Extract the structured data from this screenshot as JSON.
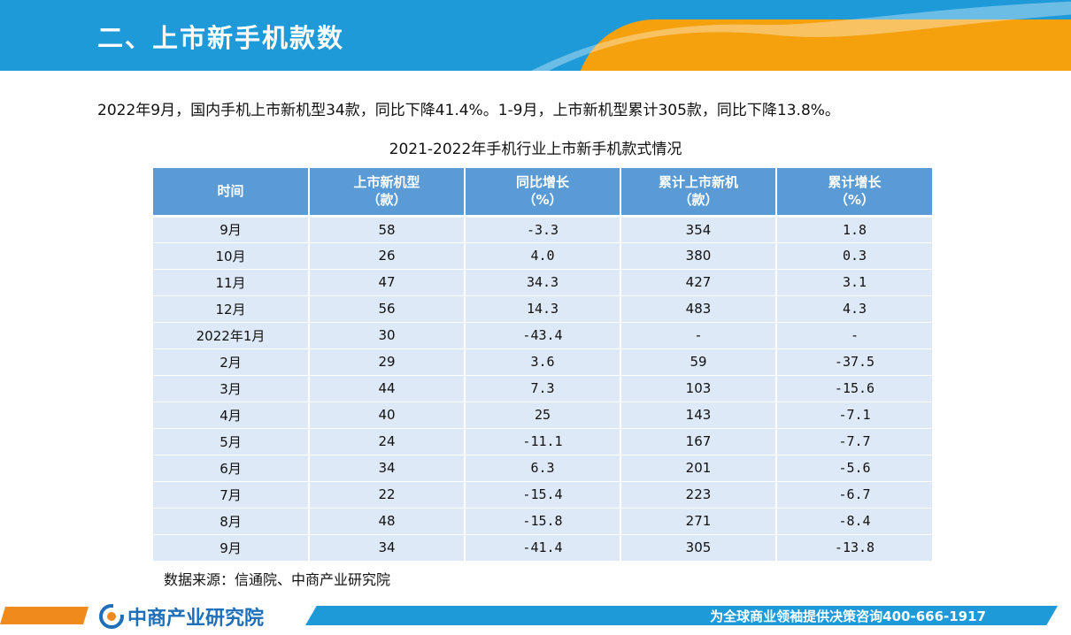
{
  "header": {
    "title": "二、上市新手机款数"
  },
  "summary": "2022年9月，国内手机上市新机型34款，同比下降41.4%。1-9月，上市新机型累计305款，同比下降13.8%。",
  "table_title": "2021-2022年手机行业上市新手机款式情况",
  "table": {
    "headers": [
      {
        "line1": "时间",
        "line2": ""
      },
      {
        "line1": "上市新机型",
        "line2": "（款）"
      },
      {
        "line1": "同比增长",
        "line2": "（%）"
      },
      {
        "line1": "累计上市新机",
        "line2": "（款）"
      },
      {
        "line1": "累计增长",
        "line2": "（%）"
      }
    ],
    "rows": [
      [
        "9月",
        "58",
        "-3.3",
        "354",
        "1.8"
      ],
      [
        "10月",
        "26",
        "4.0",
        "380",
        "0.3"
      ],
      [
        "11月",
        "47",
        "34.3",
        "427",
        "3.1"
      ],
      [
        "12月",
        "56",
        "14.3",
        "483",
        "4.3"
      ],
      [
        "2022年1月",
        "30",
        "-43.4",
        "-",
        "-"
      ],
      [
        "2月",
        "29",
        "3.6",
        "59",
        "-37.5"
      ],
      [
        "3月",
        "44",
        "7.3",
        "103",
        "-15.6"
      ],
      [
        "4月",
        "40",
        "25",
        "143",
        "-7.1"
      ],
      [
        "5月",
        "24",
        "-11.1",
        "167",
        "-7.7"
      ],
      [
        "6月",
        "34",
        "6.3",
        "201",
        "-5.6"
      ],
      [
        "7月",
        "22",
        "-15.4",
        "223",
        "-6.7"
      ],
      [
        "8月",
        "48",
        "-15.8",
        "271",
        "-8.4"
      ],
      [
        "9月",
        "34",
        "-41.4",
        "305",
        "-13.8"
      ]
    ]
  },
  "source": "数据来源：信通院、中商产业研究院",
  "footer": {
    "logo_text": "中商产业研究院",
    "slogan": "为全球商业领袖提供决策咨询400-666-1917"
  },
  "colors": {
    "header_blue": "#1e9ad9",
    "header_orange": "#f5a00d",
    "table_header": "#5b9bd5",
    "table_cell": "#dde9f6",
    "footer_orange": "#f08a1c",
    "logo_blue": "#1e6fb8"
  }
}
